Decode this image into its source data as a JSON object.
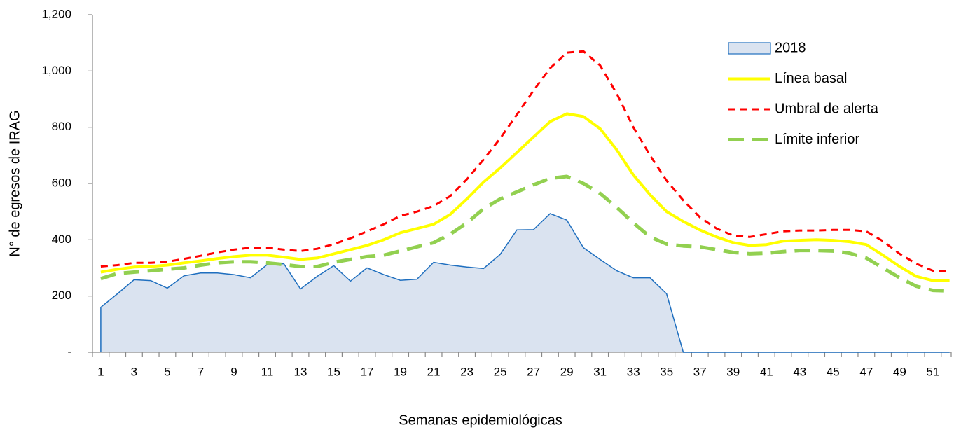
{
  "chart_data": {
    "type": "line",
    "y_label": "N° de egresos de IRAG",
    "x_label": "Semanas epidemiológicas",
    "categories": [
      1,
      null,
      3,
      null,
      5,
      null,
      7,
      null,
      9,
      null,
      11,
      null,
      13,
      null,
      15,
      null,
      17,
      null,
      19,
      null,
      21,
      null,
      23,
      null,
      25,
      null,
      27,
      null,
      29,
      null,
      31,
      null,
      33,
      null,
      35,
      null,
      37,
      null,
      39,
      null,
      41,
      null,
      43,
      null,
      45,
      null,
      47,
      null,
      49,
      null,
      51,
      null
    ],
    "ylim": [
      0,
      1200
    ],
    "yticks": [
      {
        "value": 0,
        "label": "-"
      },
      200,
      400,
      600,
      800,
      {
        "value": 1000,
        "label": "1,000"
      },
      {
        "value": 1200,
        "label": "1,200"
      }
    ],
    "grid": false,
    "legend": "top-right",
    "series": [
      {
        "name": "2018",
        "color": "#1f6fbf",
        "fill": "#dae3f0",
        "style": "area",
        "values": [
          160,
          208,
          258,
          255,
          228,
          272,
          282,
          282,
          276,
          265,
          312,
          315,
          225,
          270,
          308,
          253,
          300,
          276,
          256,
          260,
          320,
          310,
          303,
          298,
          348,
          435,
          436,
          493,
          470,
          372,
          330,
          290,
          265,
          265,
          208,
          0,
          0,
          0,
          0,
          0,
          0,
          0,
          0,
          0,
          0,
          0,
          0,
          0,
          0,
          0,
          0,
          0
        ]
      },
      {
        "name": "Línea basal",
        "color": "#ffff00",
        "style": "solid",
        "values": [
          285,
          295,
          303,
          305,
          310,
          318,
          325,
          333,
          340,
          345,
          345,
          338,
          330,
          335,
          350,
          365,
          380,
          400,
          425,
          440,
          455,
          490,
          545,
          605,
          655,
          710,
          765,
          820,
          848,
          838,
          795,
          720,
          630,
          560,
          500,
          465,
          435,
          410,
          390,
          380,
          383,
          395,
          398,
          400,
          398,
          393,
          383,
          345,
          305,
          270,
          255,
          255
        ]
      },
      {
        "name": "Umbral de alerta",
        "color": "#ff0000",
        "style": "dashed",
        "values": [
          305,
          310,
          318,
          318,
          322,
          332,
          343,
          355,
          365,
          372,
          372,
          365,
          360,
          368,
          385,
          405,
          430,
          455,
          485,
          500,
          520,
          555,
          615,
          685,
          760,
          845,
          930,
          1010,
          1065,
          1070,
          1020,
          920,
          800,
          700,
          610,
          540,
          480,
          440,
          415,
          410,
          420,
          430,
          433,
          433,
          435,
          435,
          430,
          395,
          350,
          315,
          290,
          290
        ]
      },
      {
        "name": "Límite inferior",
        "color": "#92d050",
        "style": "wide-dashed",
        "values": [
          262,
          280,
          285,
          290,
          295,
          300,
          310,
          318,
          322,
          322,
          318,
          312,
          305,
          305,
          320,
          330,
          340,
          345,
          360,
          375,
          390,
          420,
          460,
          510,
          545,
          570,
          595,
          618,
          625,
          600,
          565,
          515,
          460,
          410,
          385,
          378,
          375,
          365,
          355,
          350,
          352,
          358,
          362,
          362,
          360,
          352,
          335,
          300,
          265,
          235,
          220,
          218
        ]
      }
    ]
  }
}
